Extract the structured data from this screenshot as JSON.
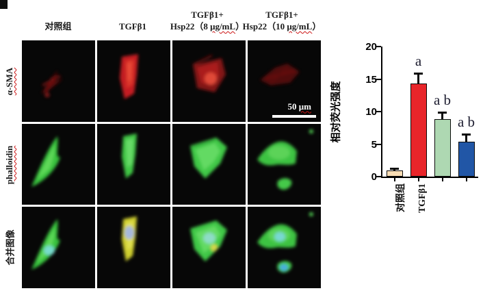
{
  "figure": {
    "column_headers": [
      {
        "line1": "",
        "pre": "对照组",
        "wavy": "",
        "post": ""
      },
      {
        "line1": "",
        "pre": "TGFβ1",
        "wavy": "",
        "post": ""
      },
      {
        "line1": "TGFβ1+",
        "pre": "Hsp22（8 ",
        "wavy": "μg/mL",
        "post": "）"
      },
      {
        "line1": "TGFβ1+",
        "pre": "Hsp22（10 ",
        "wavy": "μg/mL",
        "post": "）"
      }
    ],
    "row_labels": [
      {
        "text": "α-SMA"
      },
      {
        "text": "phalloidin"
      },
      {
        "text": "合并图像"
      }
    ],
    "scale_bar": {
      "value": "50 ",
      "unit": "μm"
    }
  },
  "chart_data": {
    "type": "bar",
    "title": "",
    "ylabel": "相对荧光强度",
    "xlabel": "",
    "ylim": [
      0,
      20
    ],
    "yticks": [
      0,
      5,
      10,
      15,
      20
    ],
    "grid": false,
    "categories": [
      "对照组",
      "TGFβ1",
      "",
      ""
    ],
    "values": [
      1.0,
      14.3,
      8.8,
      5.4
    ],
    "errors": [
      0.35,
      1.7,
      1.2,
      1.2
    ],
    "sig_labels": [
      "",
      "a",
      "a b",
      "a b"
    ],
    "bar_colors": [
      "#f8dcb4",
      "#e8252a",
      "#aed8b2",
      "#2156a6"
    ],
    "bar_edge_color": "#0a0a0a"
  }
}
